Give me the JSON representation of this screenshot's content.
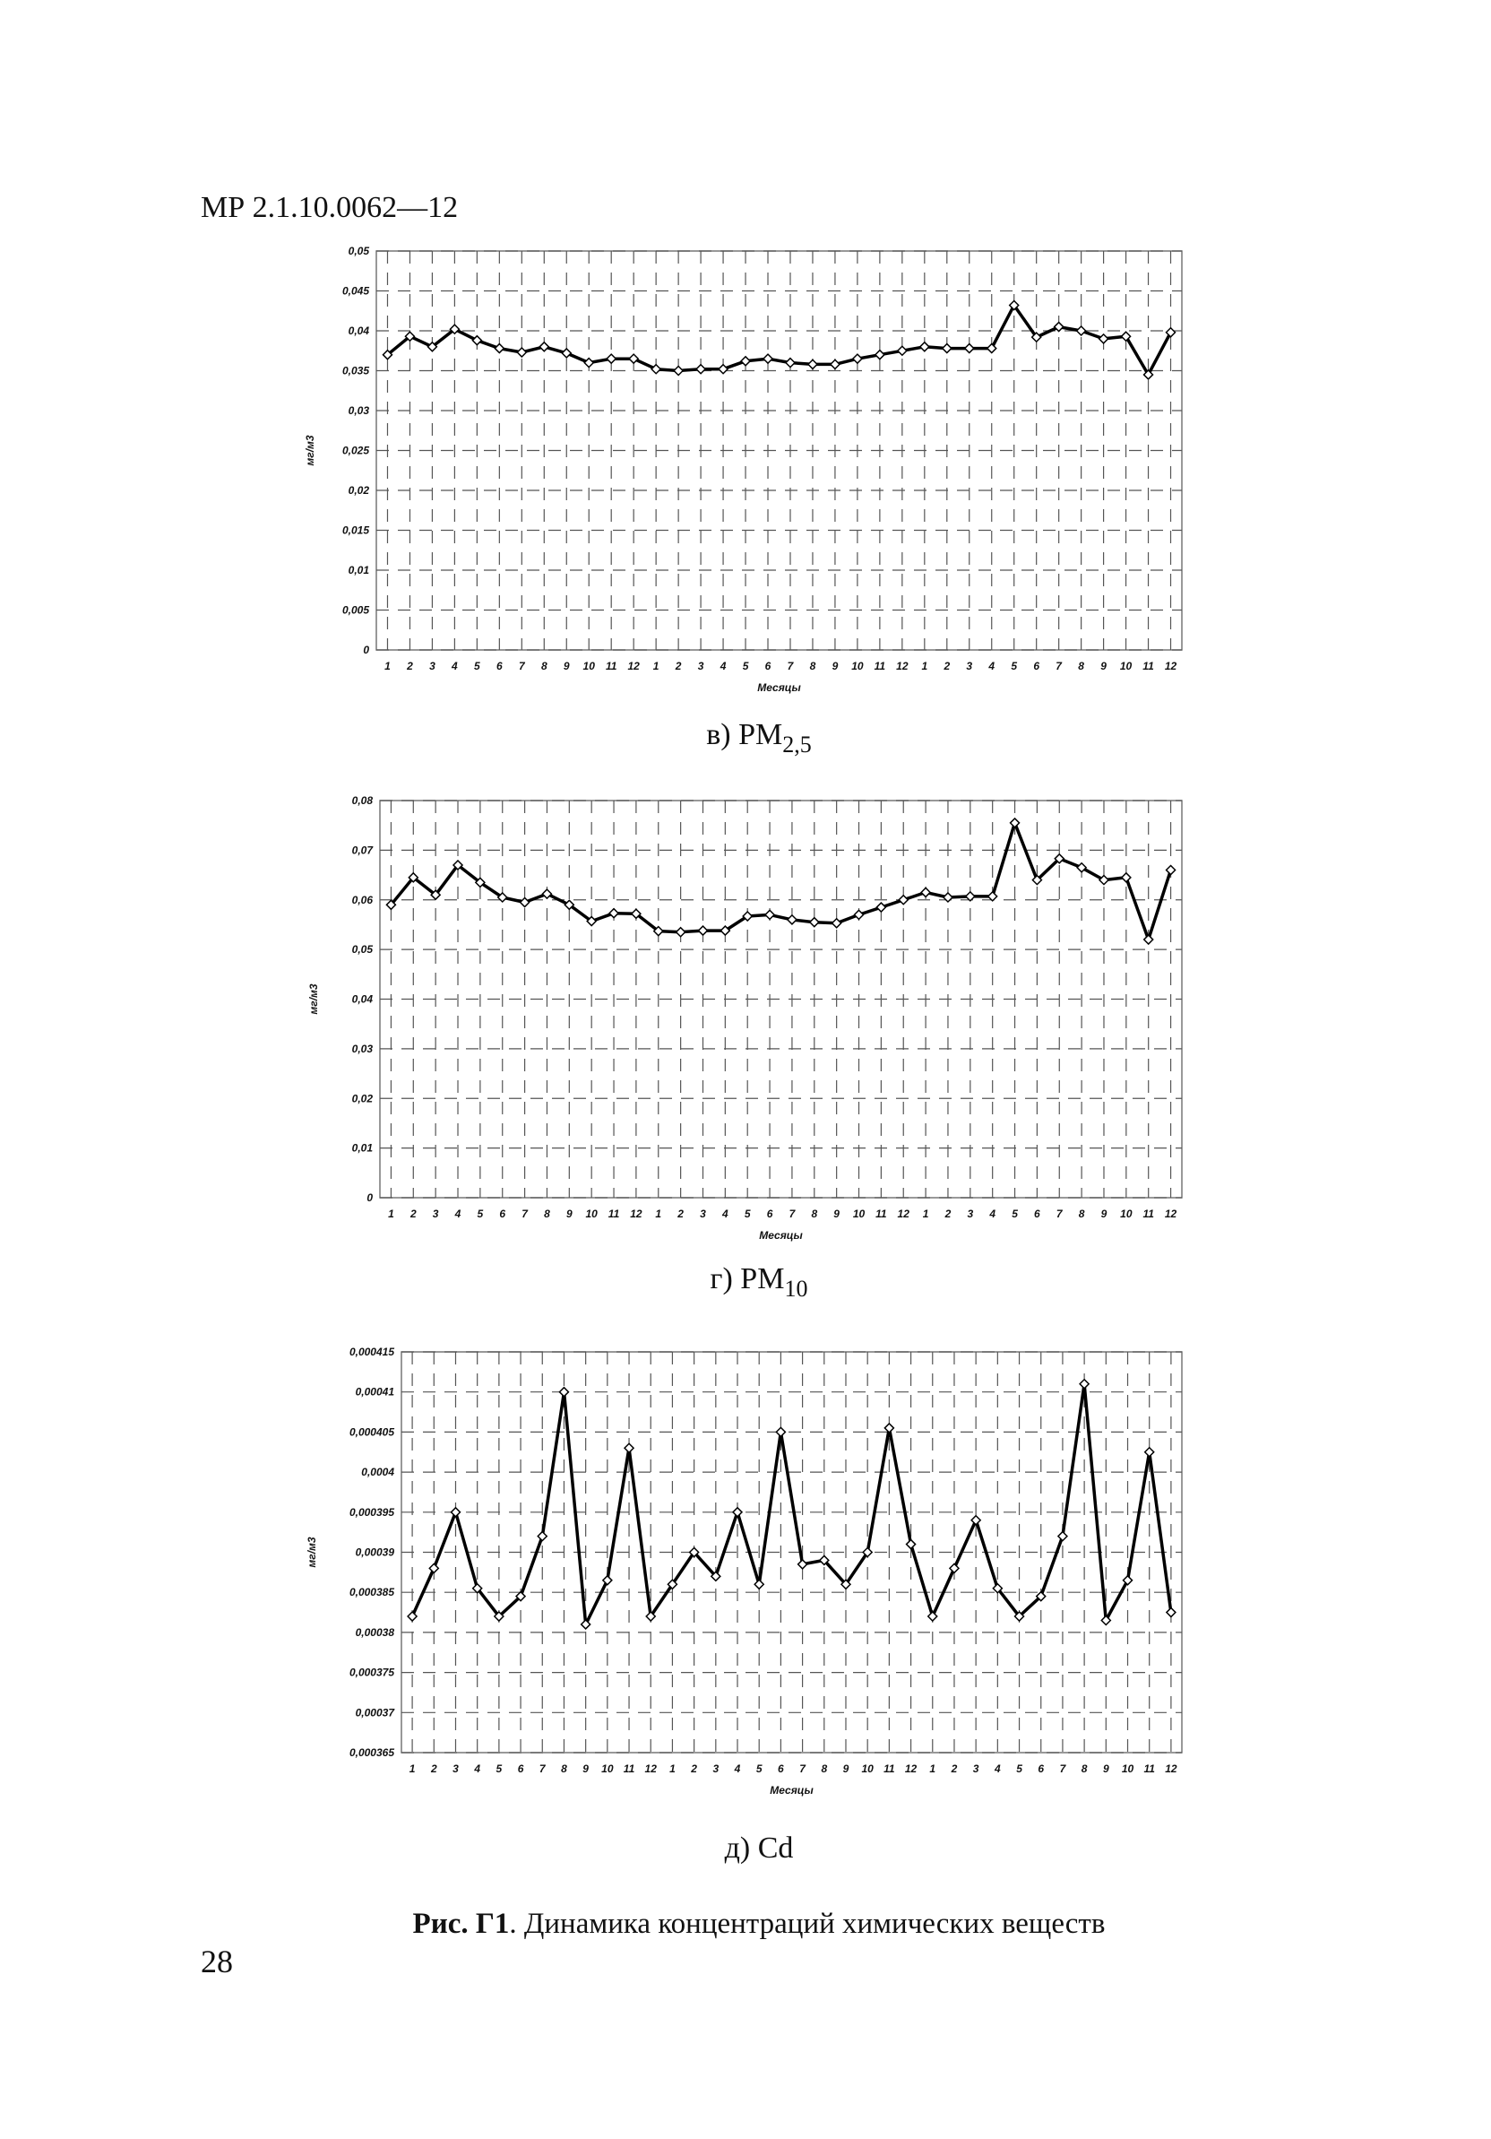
{
  "header": "МР 2.1.10.0062—12",
  "page_number": "28",
  "figure_caption": {
    "bold": "Рис.  Г1",
    "text": ". Динамика концентраций химических веществ"
  },
  "chart_data": [
    {
      "type": "line",
      "caption": {
        "text": "в) PM",
        "sub": "2,5"
      },
      "y_label": "мг/м3",
      "x_label": "Месяцы",
      "categories": [
        1,
        2,
        3,
        4,
        5,
        6,
        7,
        8,
        9,
        10,
        11,
        12,
        1,
        2,
        3,
        4,
        5,
        6,
        7,
        8,
        9,
        10,
        11,
        12,
        1,
        2,
        3,
        4,
        5,
        6,
        7,
        8,
        9,
        10,
        11,
        12
      ],
      "values": [
        0.037,
        0.0393,
        0.038,
        0.0402,
        0.0388,
        0.0378,
        0.0373,
        0.038,
        0.0372,
        0.036,
        0.0365,
        0.0365,
        0.0352,
        0.035,
        0.0352,
        0.0352,
        0.0362,
        0.0365,
        0.036,
        0.0358,
        0.0358,
        0.0365,
        0.037,
        0.0375,
        0.038,
        0.0378,
        0.0378,
        0.0378,
        0.0432,
        0.0392,
        0.0405,
        0.04,
        0.039,
        0.0393,
        0.0345,
        0.0398
      ],
      "color": "#000000",
      "marker": "diamond",
      "grid": true,
      "ylim": [
        0,
        0.05
      ],
      "yticks": [
        0,
        {
          "value": 0.005,
          "label": "0,005"
        },
        {
          "value": 0.01,
          "label": "0,01"
        },
        {
          "value": 0.015,
          "label": "0,015"
        },
        {
          "value": 0.02,
          "label": "0,02"
        },
        {
          "value": 0.025,
          "label": "0,025"
        },
        {
          "value": 0.03,
          "label": "0,03"
        },
        {
          "value": 0.035,
          "label": "0,035"
        },
        {
          "value": 0.04,
          "label": "0,04"
        },
        {
          "value": 0.045,
          "label": "0,045"
        },
        {
          "value": 0.05,
          "label": "0,05"
        }
      ]
    },
    {
      "type": "line",
      "caption": {
        "text": "г) PM",
        "sub": "10"
      },
      "y_label": "мг/м3",
      "x_label": "Месяцы",
      "categories": [
        1,
        2,
        3,
        4,
        5,
        6,
        7,
        8,
        9,
        10,
        11,
        12,
        1,
        2,
        3,
        4,
        5,
        6,
        7,
        8,
        9,
        10,
        11,
        12,
        1,
        2,
        3,
        4,
        5,
        6,
        7,
        8,
        9,
        10,
        11,
        12
      ],
      "values": [
        0.059,
        0.0645,
        0.061,
        0.067,
        0.0635,
        0.0605,
        0.0595,
        0.0612,
        0.059,
        0.0557,
        0.0573,
        0.0572,
        0.0537,
        0.0535,
        0.0538,
        0.0538,
        0.0567,
        0.057,
        0.056,
        0.0555,
        0.0553,
        0.057,
        0.0585,
        0.06,
        0.0615,
        0.0605,
        0.0607,
        0.0607,
        0.0755,
        0.064,
        0.0683,
        0.0665,
        0.064,
        0.0645,
        0.052,
        0.066
      ],
      "color": "#000000",
      "marker": "diamond",
      "grid": true,
      "ylim": [
        0,
        0.08
      ],
      "yticks": [
        0,
        {
          "value": 0.01,
          "label": "0,01"
        },
        {
          "value": 0.02,
          "label": "0,02"
        },
        {
          "value": 0.03,
          "label": "0,03"
        },
        {
          "value": 0.04,
          "label": "0,04"
        },
        {
          "value": 0.05,
          "label": "0,05"
        },
        {
          "value": 0.06,
          "label": "0,06"
        },
        {
          "value": 0.07,
          "label": "0,07"
        },
        {
          "value": 0.08,
          "label": "0,08"
        }
      ]
    },
    {
      "type": "line",
      "caption": {
        "text": "д) Cd"
      },
      "y_label": "мг/м3",
      "x_label": "Месяцы",
      "categories": [
        1,
        2,
        3,
        4,
        5,
        6,
        7,
        8,
        9,
        10,
        11,
        12,
        1,
        2,
        3,
        4,
        5,
        6,
        7,
        8,
        9,
        10,
        11,
        12,
        1,
        2,
        3,
        4,
        5,
        6,
        7,
        8,
        9,
        10,
        11,
        12
      ],
      "values": [
        0.000382,
        0.000388,
        0.000395,
        0.0003855,
        0.000382,
        0.0003845,
        0.000392,
        0.00041,
        0.000381,
        0.0003865,
        0.000403,
        0.000382,
        0.000386,
        0.00039,
        0.000387,
        0.000395,
        0.000386,
        0.000405,
        0.0003885,
        0.000389,
        0.000386,
        0.00039,
        0.0004055,
        0.000391,
        0.000382,
        0.000388,
        0.000394,
        0.0003855,
        0.000382,
        0.0003845,
        0.000392,
        0.000411,
        0.0003815,
        0.0003865,
        0.0004025,
        0.0003825
      ],
      "color": "#000000",
      "marker": "diamond",
      "grid": true,
      "ylim": [
        0.000365,
        0.000415
      ],
      "yticks": [
        {
          "value": 0.000365,
          "label": "0,000365"
        },
        {
          "value": 0.00037,
          "label": "0,00037"
        },
        {
          "value": 0.000375,
          "label": "0,000375"
        },
        {
          "value": 0.00038,
          "label": "0,00038"
        },
        {
          "value": 0.000385,
          "label": "0,000385"
        },
        {
          "value": 0.00039,
          "label": "0,00039"
        },
        {
          "value": 0.000395,
          "label": "0,000395"
        },
        {
          "value": 0.0004,
          "label": "0,0004"
        },
        {
          "value": 0.000405,
          "label": "0,000405"
        },
        {
          "value": 0.00041,
          "label": "0,00041"
        },
        {
          "value": 0.000415,
          "label": "0,000415"
        }
      ]
    }
  ]
}
